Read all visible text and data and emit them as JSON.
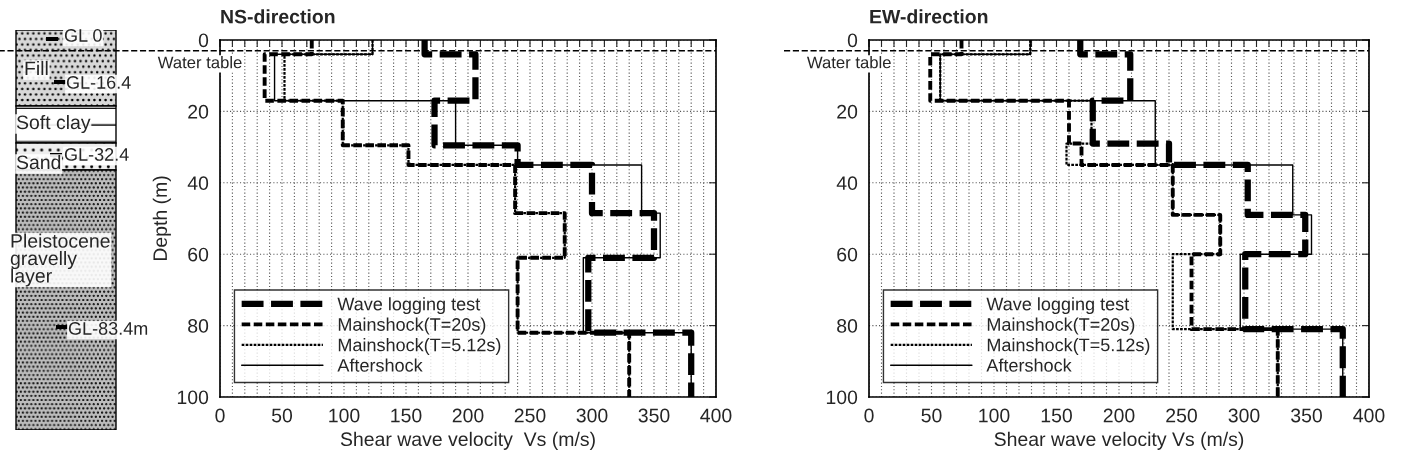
{
  "chart_data": [
    {
      "type": "other",
      "annotations": [
        "GL 0",
        "Fill",
        "GL-16.4",
        "Soft clay",
        "GL-32.4",
        "Sand",
        "Pleistocene\ngravelly\nlayer",
        "GL-83.4m"
      ]
    },
    {
      "type": "line",
      "title": "NS-direction",
      "xlabel": "Shear wave velocity  Vs (m/s)",
      "ylabel": "Depth (m)",
      "xlim": [
        0,
        400
      ],
      "ylim": [
        100,
        0
      ],
      "xticks": [
        0,
        {
          "value": 10,
          "label": null
        },
        {
          "value": 20,
          "label": null
        },
        {
          "value": 30,
          "label": null
        },
        {
          "value": 40,
          "label": null
        },
        50,
        {
          "value": 60,
          "label": null
        },
        {
          "value": 70,
          "label": null
        },
        {
          "value": 80,
          "label": null
        },
        {
          "value": 90,
          "label": null
        },
        100,
        {
          "value": 110,
          "label": null
        },
        {
          "value": 120,
          "label": null
        },
        {
          "value": 130,
          "label": null
        },
        {
          "value": 140,
          "label": null
        },
        150,
        {
          "value": 160,
          "label": null
        },
        {
          "value": 170,
          "label": null
        },
        {
          "value": 180,
          "label": null
        },
        {
          "value": 190,
          "label": null
        },
        200,
        {
          "value": 210,
          "label": null
        },
        {
          "value": 220,
          "label": null
        },
        {
          "value": 230,
          "label": null
        },
        {
          "value": 240,
          "label": null
        },
        250,
        {
          "value": 260,
          "label": null
        },
        {
          "value": 270,
          "label": null
        },
        {
          "value": 280,
          "label": null
        },
        {
          "value": 290,
          "label": null
        },
        300,
        {
          "value": 310,
          "label": null
        },
        {
          "value": 320,
          "label": null
        },
        {
          "value": 330,
          "label": null
        },
        {
          "value": 340,
          "label": null
        },
        350,
        {
          "value": 360,
          "label": null
        },
        {
          "value": 370,
          "label": null
        },
        {
          "value": 380,
          "label": null
        },
        {
          "value": 390,
          "label": null
        },
        400
      ],
      "yticks": [
        0,
        20,
        40,
        60,
        80,
        100
      ],
      "grid": true,
      "legend": "bottom left",
      "ref_lines": [
        {
          "axis": "y",
          "value": 3,
          "label": "Water table",
          "line_style": "dashed",
          "color": "#000000"
        }
      ],
      "series": [
        {
          "name": "Wave logging test",
          "color": "#000000",
          "line_style": "dashed",
          "x": [
            165,
            165,
            206,
            206,
            173,
            173,
            240,
            240,
            300,
            300,
            350,
            350,
            297,
            297,
            380,
            380
          ],
          "values": [
            0,
            4,
            4,
            17,
            17,
            29.5,
            29.5,
            35,
            35,
            48.5,
            48.5,
            61,
            61,
            82,
            82,
            100
          ]
        },
        {
          "name": "Mainshock(T=20s)",
          "color": "#000000",
          "line_style": "dashed",
          "x": [
            74,
            74,
            36,
            36,
            99,
            99,
            152,
            152,
            238,
            238,
            278,
            278,
            240,
            240,
            330,
            330
          ],
          "values": [
            0,
            4,
            4,
            17,
            17,
            29.5,
            29.5,
            35,
            35,
            48.5,
            48.5,
            61,
            61,
            82,
            82,
            100
          ]
        },
        {
          "name": "Mainshock(T=5.12s)",
          "color": "#000000",
          "line_style": "dotted",
          "x": [
            123,
            123,
            52,
            52,
            99,
            99,
            152,
            152,
            238,
            238,
            278,
            278,
            240,
            240,
            330,
            330
          ],
          "values": [
            0,
            4,
            4,
            17,
            17,
            29.5,
            29.5,
            35,
            35,
            48.5,
            48.5,
            61,
            61,
            82,
            82,
            100
          ]
        },
        {
          "name": "Aftershock",
          "color": "#000000",
          "line_style": "solid",
          "x": [
            123,
            123,
            44,
            44,
            190,
            190,
            240,
            240,
            340,
            340,
            355,
            355,
            293,
            293,
            380,
            380
          ],
          "values": [
            0,
            4,
            4,
            17,
            17,
            29.5,
            29.5,
            35,
            35,
            48.5,
            48.5,
            61,
            61,
            82,
            82,
            100
          ]
        }
      ]
    },
    {
      "type": "line",
      "title": "EW-direction",
      "xlabel": "Shear wave velocity Vs (m/s)",
      "xlim": [
        0,
        400
      ],
      "ylim": [
        100,
        0
      ],
      "xticks": [
        0,
        {
          "value": 10,
          "label": null
        },
        {
          "value": 20,
          "label": null
        },
        {
          "value": 30,
          "label": null
        },
        {
          "value": 40,
          "label": null
        },
        50,
        {
          "value": 60,
          "label": null
        },
        {
          "value": 70,
          "label": null
        },
        {
          "value": 80,
          "label": null
        },
        {
          "value": 90,
          "label": null
        },
        100,
        {
          "value": 110,
          "label": null
        },
        {
          "value": 120,
          "label": null
        },
        {
          "value": 130,
          "label": null
        },
        {
          "value": 140,
          "label": null
        },
        150,
        {
          "value": 160,
          "label": null
        },
        {
          "value": 170,
          "label": null
        },
        {
          "value": 180,
          "label": null
        },
        {
          "value": 190,
          "label": null
        },
        200,
        {
          "value": 210,
          "label": null
        },
        {
          "value": 220,
          "label": null
        },
        {
          "value": 230,
          "label": null
        },
        {
          "value": 240,
          "label": null
        },
        250,
        {
          "value": 260,
          "label": null
        },
        {
          "value": 270,
          "label": null
        },
        {
          "value": 280,
          "label": null
        },
        {
          "value": 290,
          "label": null
        },
        300,
        {
          "value": 310,
          "label": null
        },
        {
          "value": 320,
          "label": null
        },
        {
          "value": 330,
          "label": null
        },
        {
          "value": 340,
          "label": null
        },
        350,
        {
          "value": 360,
          "label": null
        },
        {
          "value": 370,
          "label": null
        },
        {
          "value": 380,
          "label": null
        },
        {
          "value": 390,
          "label": null
        },
        400
      ],
      "yticks": [
        0,
        20,
        40,
        60,
        80,
        100
      ],
      "grid": true,
      "legend": "bottom left",
      "ref_lines": [
        {
          "axis": "y",
          "value": 3,
          "label": "Water table",
          "line_style": "dashed",
          "color": "#000000"
        }
      ],
      "series": [
        {
          "name": "Wave logging test",
          "color": "#000000",
          "line_style": "dashed",
          "x": [
            169,
            169,
            209,
            209,
            179,
            179,
            240,
            240,
            303,
            303,
            349,
            349,
            301,
            301,
            379,
            379
          ],
          "values": [
            0,
            4,
            4,
            17,
            17,
            29,
            29,
            35,
            35,
            49,
            49,
            60,
            60,
            81,
            81,
            100
          ]
        },
        {
          "name": "Mainshock(T=20s)",
          "color": "#000000",
          "line_style": "dashed",
          "x": [
            74,
            74,
            49,
            49,
            160,
            160,
            170,
            170,
            243,
            243,
            281,
            281,
            258,
            258,
            327,
            327
          ],
          "values": [
            0,
            4,
            4,
            17,
            17,
            29,
            29,
            35,
            35,
            49,
            49,
            60,
            60,
            81,
            81,
            100
          ]
        },
        {
          "name": "Mainshock(T=5.12s)",
          "color": "#000000",
          "line_style": "dotted",
          "x": [
            129,
            129,
            57,
            57,
            178,
            178,
            158,
            158,
            243,
            243,
            281,
            281,
            243,
            243,
            327,
            327
          ],
          "values": [
            0,
            4,
            4,
            17,
            17,
            29,
            29,
            35,
            35,
            49,
            49,
            60,
            60,
            81,
            81,
            100
          ]
        },
        {
          "name": "Aftershock",
          "color": "#000000",
          "line_style": "solid",
          "x": [
            129,
            129,
            57,
            57,
            229,
            229,
            339,
            339,
            354,
            354,
            297,
            297,
            379,
            379
          ],
          "values": [
            0,
            4,
            4,
            17,
            17,
            35,
            35,
            49,
            49,
            60,
            60,
            81,
            81,
            100
          ]
        }
      ]
    }
  ]
}
